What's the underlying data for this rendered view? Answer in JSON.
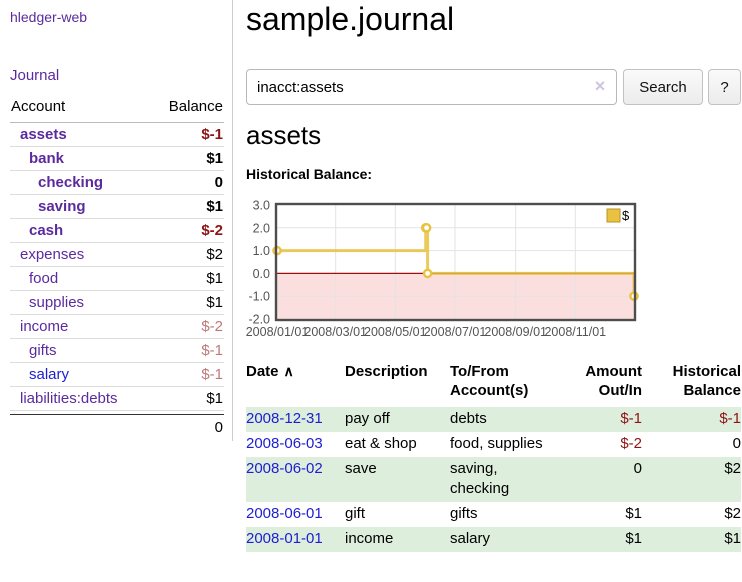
{
  "colors": {
    "link_purple": "#5b2a9e",
    "link_blue": "#1d1dd1",
    "negative_dark": "#8e1313",
    "negative_muted": "#bf7878",
    "row_stripe_green": "#ddeedd",
    "chart_line_gold": "#e8c240",
    "chart_negative_region": "#fbdfdf",
    "chart_zero_line": "#9e0e0e"
  },
  "sidebar": {
    "brand": "hledger-web",
    "nav": {
      "journal": "Journal"
    },
    "table": {
      "header_account": "Account",
      "header_balance": "Balance",
      "rows": [
        {
          "account": "assets",
          "balance": "$-1",
          "indent": 1,
          "bold": true,
          "color": "purple",
          "value_class": "neg"
        },
        {
          "account": "bank",
          "balance": "$1",
          "indent": 2,
          "bold": true,
          "color": "purple",
          "value_class": ""
        },
        {
          "account": "checking",
          "balance": "0",
          "indent": 3,
          "bold": true,
          "color": "purple",
          "value_class": ""
        },
        {
          "account": "saving",
          "balance": "$1",
          "indent": 3,
          "bold": true,
          "color": "purple",
          "value_class": ""
        },
        {
          "account": "cash",
          "balance": "$-2",
          "indent": 2,
          "bold": true,
          "color": "purple",
          "value_class": "neg"
        },
        {
          "account": "expenses",
          "balance": "$2",
          "indent": 1,
          "bold": false,
          "color": "purple",
          "value_class": ""
        },
        {
          "account": "food",
          "balance": "$1",
          "indent": 2,
          "bold": false,
          "color": "purple",
          "value_class": ""
        },
        {
          "account": "supplies",
          "balance": "$1",
          "indent": 2,
          "bold": false,
          "color": "purple",
          "value_class": ""
        },
        {
          "account": "income",
          "balance": "$-2",
          "indent": 1,
          "bold": false,
          "color": "purple",
          "value_class": "negm"
        },
        {
          "account": "gifts",
          "balance": "$-1",
          "indent": 2,
          "bold": false,
          "color": "purple",
          "value_class": "negm"
        },
        {
          "account": "salary",
          "balance": "$-1",
          "indent": 2,
          "bold": false,
          "color": "blue",
          "value_class": "negm"
        },
        {
          "account": "liabilities:debts",
          "balance": "$1",
          "indent": 1,
          "bold": false,
          "color": "purple",
          "value_class": ""
        }
      ],
      "total": "0"
    }
  },
  "main": {
    "title": "sample.journal",
    "search": {
      "value": "inacct:assets",
      "clear_icon": "×",
      "button_label": "Search",
      "help_label": "?"
    },
    "account_heading": "assets",
    "chart_heading": "Historical Balance:"
  },
  "chart_data": {
    "type": "line",
    "title": "Historical Balance",
    "series": [
      {
        "name": "$",
        "color": "#e8c240",
        "step": true,
        "points": [
          [
            "2008-01-01",
            1.0
          ],
          [
            "2008-06-01",
            2.0
          ],
          [
            "2008-06-02",
            2.0
          ],
          [
            "2008-06-03",
            0.0
          ],
          [
            "2008-12-31",
            -1.0
          ]
        ]
      }
    ],
    "xlim": [
      "2008-01-01",
      "2008-12-31"
    ],
    "ylim": [
      -2.0,
      3.0
    ],
    "yticks": [
      3.0,
      2.0,
      1.0,
      0.0,
      -1.0,
      -2.0
    ],
    "xtick_labels": [
      "2008/01/01",
      "2008/03/01",
      "2008/05/01",
      "2008/07/01",
      "2008/09/01",
      "2008/11/01"
    ],
    "legend": {
      "position": "top-right",
      "label": "$"
    },
    "grid": true,
    "negative_region_color": "#fbdfdf",
    "zero_line_color": "#9e0e0e"
  },
  "register": {
    "columns": [
      {
        "label": "Date",
        "label2": "",
        "align": "left",
        "sort_indicator": "∧"
      },
      {
        "label": "Description",
        "label2": "",
        "align": "left"
      },
      {
        "label": "To/From",
        "label2": "Account(s)",
        "align": "left"
      },
      {
        "label": "Amount",
        "label2": "Out/In",
        "align": "right"
      },
      {
        "label": "Historical",
        "label2": "Balance",
        "align": "right"
      }
    ],
    "rows": [
      {
        "date": "2008-12-31",
        "description": "pay off",
        "accounts": "debts",
        "amount": "$-1",
        "amount_negative": true,
        "balance": "$-1",
        "balance_negative": true
      },
      {
        "date": "2008-06-03",
        "description": "eat & shop",
        "accounts": "food, supplies",
        "amount": "$-2",
        "amount_negative": true,
        "balance": "0",
        "balance_negative": false
      },
      {
        "date": "2008-06-02",
        "description": "save",
        "accounts": "saving, checking",
        "amount": "0",
        "amount_negative": false,
        "balance": "$2",
        "balance_negative": false
      },
      {
        "date": "2008-06-01",
        "description": "gift",
        "accounts": "gifts",
        "amount": "$1",
        "amount_negative": false,
        "balance": "$2",
        "balance_negative": false
      },
      {
        "date": "2008-01-01",
        "description": "income",
        "accounts": "salary",
        "amount": "$1",
        "amount_negative": false,
        "balance": "$1",
        "balance_negative": false
      }
    ]
  }
}
